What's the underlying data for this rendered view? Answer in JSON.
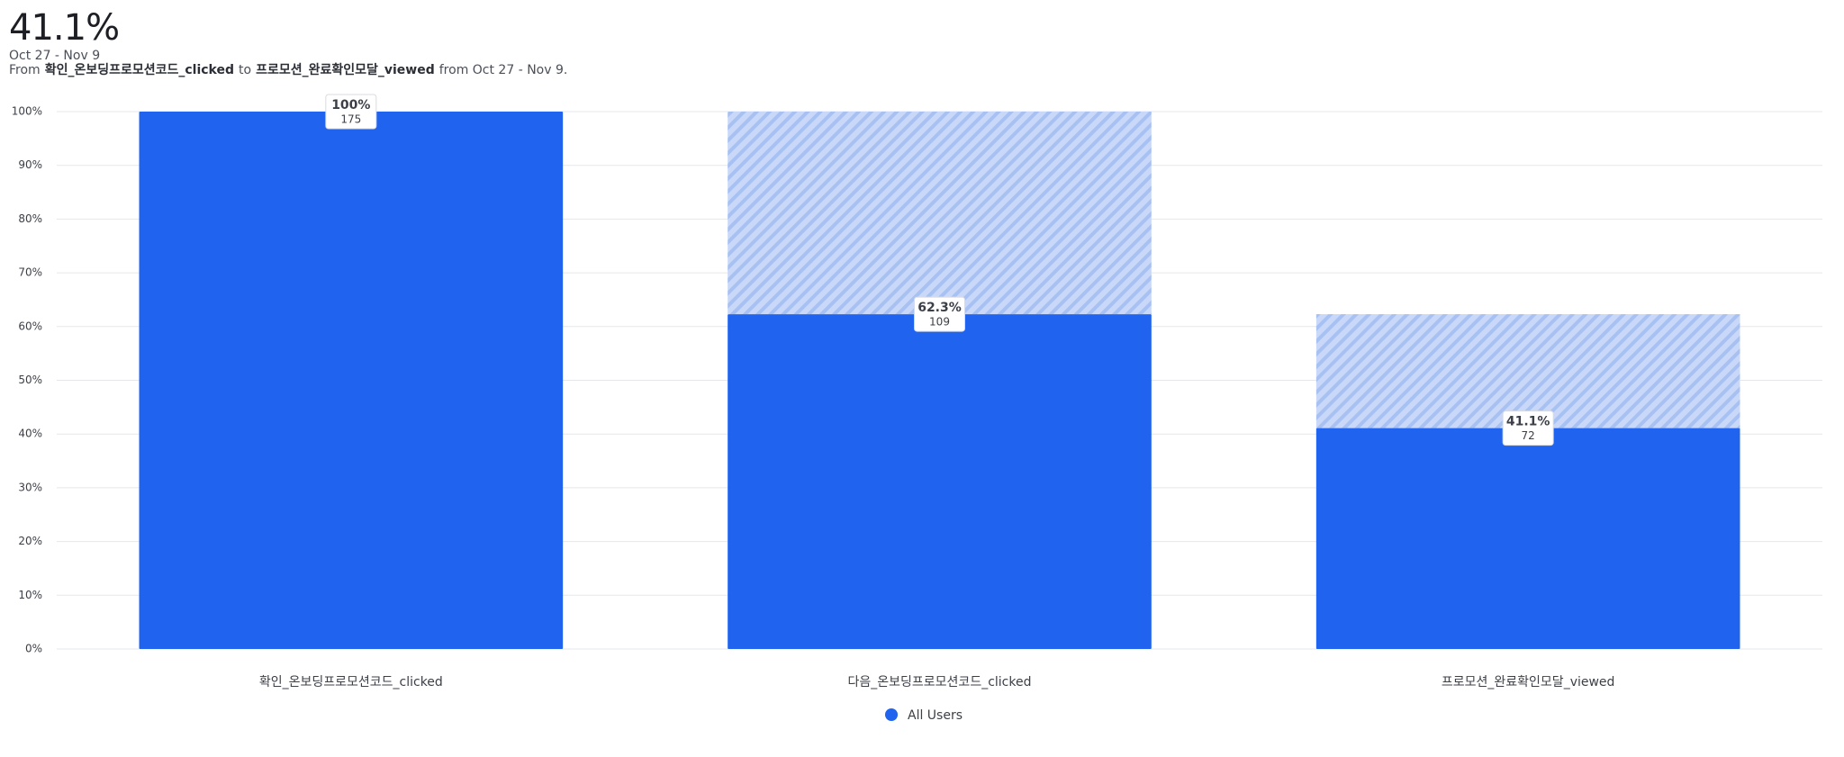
{
  "chart_data": {
    "type": "funnel",
    "headline": "41.1%",
    "date_range": "Oct 27 - Nov 9",
    "subtitle": [
      "From",
      "확인_온보딩프로모션코드_clicked",
      "to",
      "프로모션_완료확인모달_viewed",
      "from Oct 27 - Nov 9."
    ],
    "categories": [
      "확인_온보딩프로모션코드_clicked",
      "다음_온보딩프로모션코드_clicked",
      "프로모션_완료확인모달_viewed"
    ],
    "series": [
      {
        "name": "All Users",
        "color": "#1f63ef",
        "values": [
          100,
          62.3,
          41.1
        ],
        "value_labels": [
          "100%",
          "62.3%",
          "41.1%"
        ],
        "counts": [
          175,
          109,
          72
        ]
      }
    ],
    "ylim": [
      0,
      100
    ],
    "yticks": [
      {
        "value": 0,
        "label": "0%"
      },
      {
        "value": 10,
        "label": "10%"
      },
      {
        "value": 20,
        "label": "20%"
      },
      {
        "value": 30,
        "label": "30%"
      },
      {
        "value": 40,
        "label": "40%"
      },
      {
        "value": 50,
        "label": "50%"
      },
      {
        "value": 60,
        "label": "60%"
      },
      {
        "value": 70,
        "label": "70%"
      },
      {
        "value": 80,
        "label": "80%"
      },
      {
        "value": 90,
        "label": "90%"
      },
      {
        "value": 100,
        "label": "100%"
      }
    ],
    "grid": true,
    "legend": "bottom"
  }
}
